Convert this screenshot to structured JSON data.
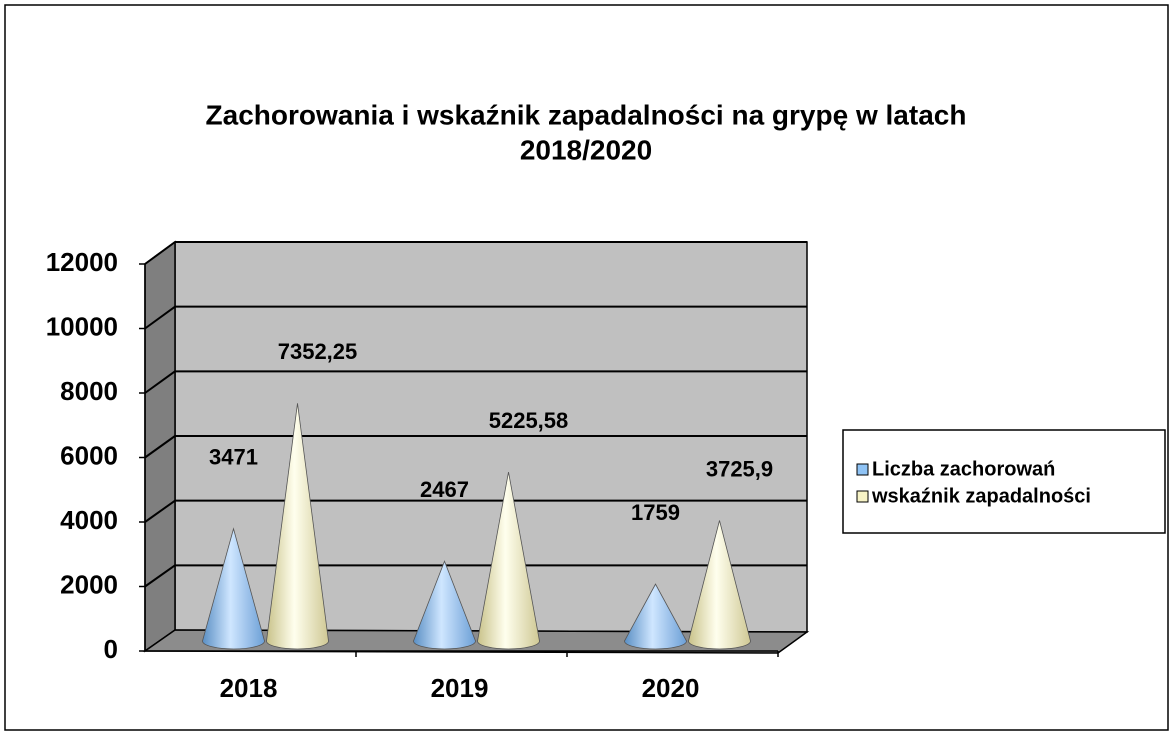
{
  "chart_data": {
    "type": "cone3d",
    "title": "Zachorowania i wskaźnik zapadalności na grypę w latach",
    "subtitle": "2018/2020",
    "categories": [
      "2018",
      "2019",
      "2020"
    ],
    "series": [
      {
        "name": "Liczba zachorowań",
        "color": "#8fc3f5",
        "values": [
          3471,
          2467,
          1759
        ]
      },
      {
        "name": "wskaźnik zapadalności",
        "color": "#f7f3c6",
        "values": [
          7352.25,
          5225.58,
          3725.9
        ],
        "value_labels": [
          "7352,25",
          "5225,58",
          "3725,9"
        ]
      }
    ],
    "ylim": [
      0,
      12000
    ],
    "yticks": [
      0,
      2000,
      4000,
      6000,
      8000,
      10000,
      12000
    ],
    "grid": true,
    "legend": "right"
  }
}
